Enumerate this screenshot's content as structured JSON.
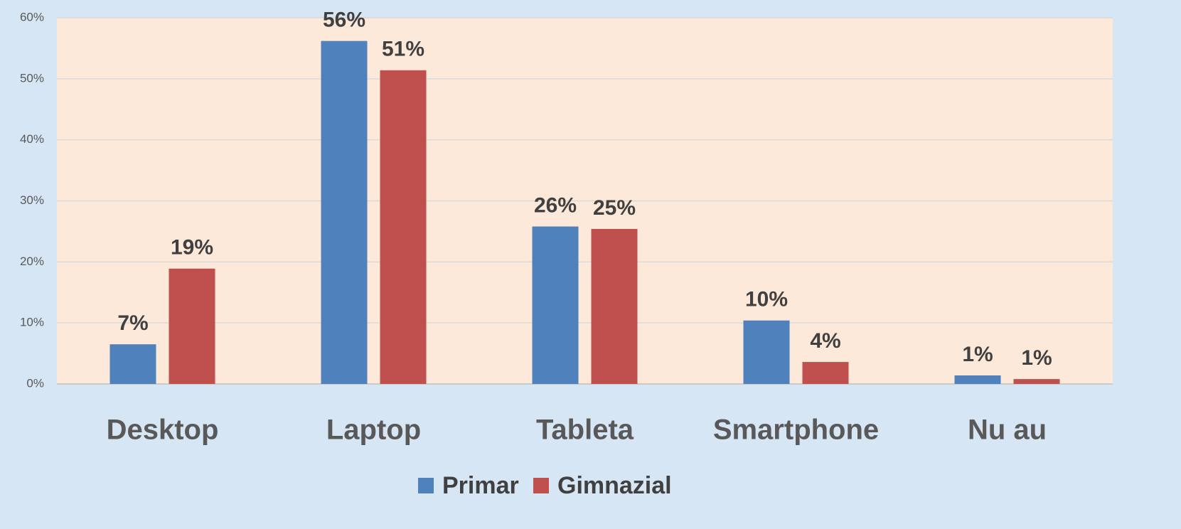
{
  "chart_data": {
    "type": "bar",
    "categories": [
      "Desktop",
      "Laptop",
      "Tableta",
      "Smartphone",
      "Nu au"
    ],
    "series": [
      {
        "name": "Primar",
        "color": "#4f81bd",
        "values": [
          6.5,
          56.2,
          25.8,
          10.4,
          1.4
        ],
        "value_labels": [
          "7%",
          "56%",
          "26%",
          "10%",
          "1%"
        ]
      },
      {
        "name": "Gimnazial",
        "color": "#c0504d",
        "values": [
          18.9,
          51.4,
          25.4,
          3.6,
          0.8
        ],
        "value_labels": [
          "19%",
          "51%",
          "25%",
          "4%",
          "1%"
        ]
      }
    ],
    "ylim": [
      0,
      60
    ],
    "yticks": [
      {
        "value": 0,
        "label": "0%"
      },
      {
        "value": 10,
        "label": "10%"
      },
      {
        "value": 20,
        "label": "20%"
      },
      {
        "value": 30,
        "label": "30%"
      },
      {
        "value": 40,
        "label": "40%"
      },
      {
        "value": 50,
        "label": "50%"
      },
      {
        "value": 60,
        "label": "60%"
      }
    ],
    "grid": true,
    "legend": "bottom"
  }
}
